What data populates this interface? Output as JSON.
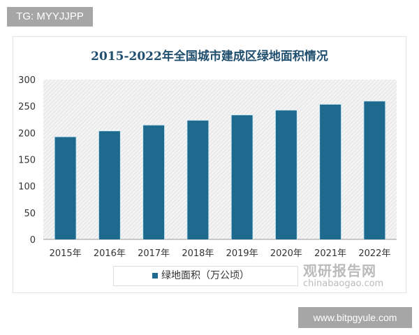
{
  "tag": "TG: MYYJJPP",
  "site": "www.bitpgyule.com",
  "watermark": {
    "cn": "观研报告网",
    "en": "chinabaogao.com"
  },
  "chart_data": {
    "type": "bar",
    "title": "2015-2022年全国城市建成区绿地面积情况",
    "categories": [
      "2015年",
      "2016年",
      "2017年",
      "2018年",
      "2019年",
      "2020年",
      "2021年",
      "2022年"
    ],
    "series": [
      {
        "name": "绿地面积（万公顷）",
        "values": [
          192,
          203,
          214,
          223,
          233,
          242,
          253,
          259
        ]
      }
    ],
    "yticks": [
      0,
      50,
      100,
      150,
      200,
      250,
      300
    ],
    "ylim": [
      0,
      300
    ],
    "legend": "bottom",
    "color": "#1e6a8e"
  }
}
